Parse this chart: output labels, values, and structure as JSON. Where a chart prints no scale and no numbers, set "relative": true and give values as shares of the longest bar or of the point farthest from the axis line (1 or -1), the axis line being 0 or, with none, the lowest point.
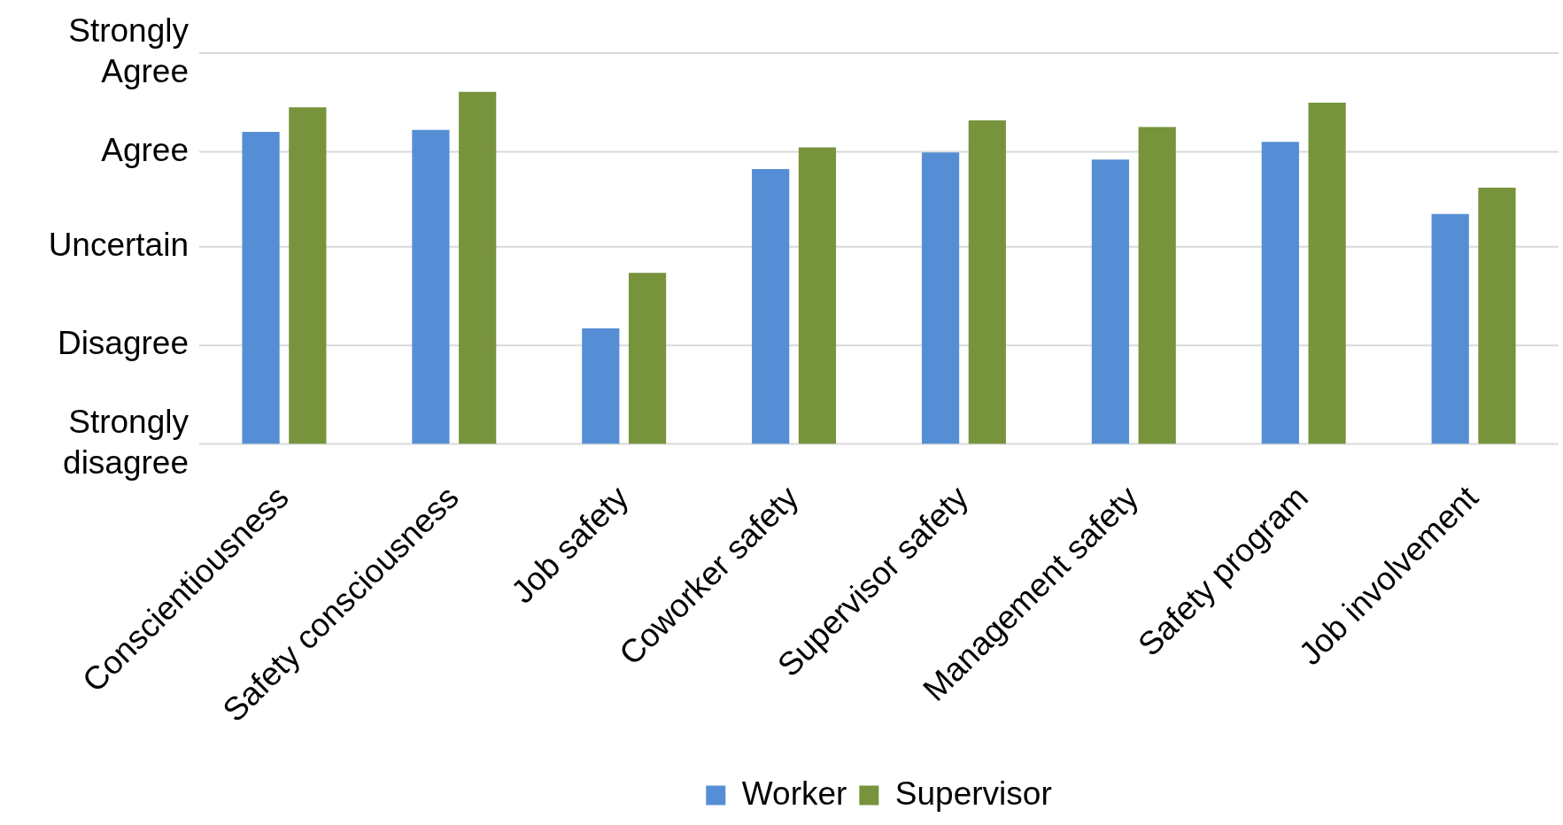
{
  "chart_data": {
    "type": "bar",
    "relative": true,
    "categories": [
      "Conscientiousness",
      "Safety consciousness",
      "Job safety",
      "Coworker safety",
      "Supervisor safety",
      "Management safety",
      "Safety program",
      "Job involvement"
    ],
    "series": [
      {
        "name": "Worker",
        "color": "#558ed5",
        "values": [
          0.886,
          0.892,
          0.328,
          0.781,
          0.828,
          0.808,
          0.858,
          0.653
        ]
      },
      {
        "name": "Supervisor",
        "color": "#77933c",
        "values": [
          0.956,
          1,
          0.486,
          0.842,
          0.919,
          0.9,
          0.969,
          0.728
        ]
      }
    ],
    "ref_lines": [
      {
        "axis": "y",
        "value": 0,
        "label": "Strongly disagree",
        "color": "#d9d9d9"
      },
      {
        "axis": "y",
        "value": 0.28,
        "label": "Disagree",
        "color": "#d9d9d9"
      },
      {
        "axis": "y",
        "value": 0.56,
        "label": "Uncertain",
        "color": "#d9d9d9"
      },
      {
        "axis": "y",
        "value": 0.83,
        "label": "Agree",
        "color": "#d9d9d9"
      },
      {
        "axis": "y",
        "value": 1.11,
        "label": "Strongly Agree",
        "color": "#d9d9d9"
      }
    ],
    "legend": "bottom"
  }
}
